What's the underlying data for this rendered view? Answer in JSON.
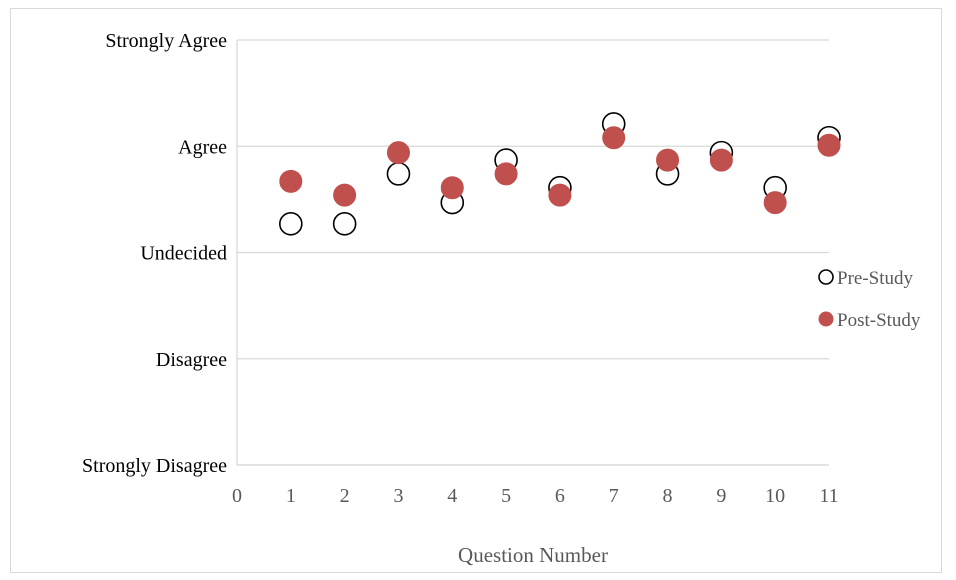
{
  "chart_data": {
    "type": "scatter",
    "title": "",
    "xlabel": "Question Number",
    "ylabel": "",
    "xlim": [
      0,
      11
    ],
    "ylim": [
      1,
      5
    ],
    "x_ticks": [
      "0",
      "1",
      "2",
      "3",
      "4",
      "5",
      "6",
      "7",
      "8",
      "9",
      "10",
      "11"
    ],
    "y_tick_labels": [
      "Strongly Disagree",
      "Disagree",
      "Undecided",
      "Agree",
      "Strongly Agree"
    ],
    "grid": true,
    "legend_position": "right",
    "series": [
      {
        "name": "Pre-Study",
        "marker": "open-circle",
        "color": "#000000",
        "x": [
          1,
          2,
          3,
          4,
          5,
          6,
          7,
          8,
          9,
          10,
          11
        ],
        "y": [
          3.27,
          3.27,
          3.74,
          3.47,
          3.87,
          3.61,
          4.21,
          3.74,
          3.94,
          3.61,
          4.08
        ]
      },
      {
        "name": "Post-Study",
        "marker": "filled-circle",
        "color": "#c0504d",
        "x": [
          1,
          2,
          3,
          4,
          5,
          6,
          7,
          8,
          9,
          10,
          11
        ],
        "y": [
          3.67,
          3.54,
          3.94,
          3.61,
          3.74,
          3.54,
          4.08,
          3.87,
          3.87,
          3.47,
          4.01
        ]
      }
    ]
  }
}
